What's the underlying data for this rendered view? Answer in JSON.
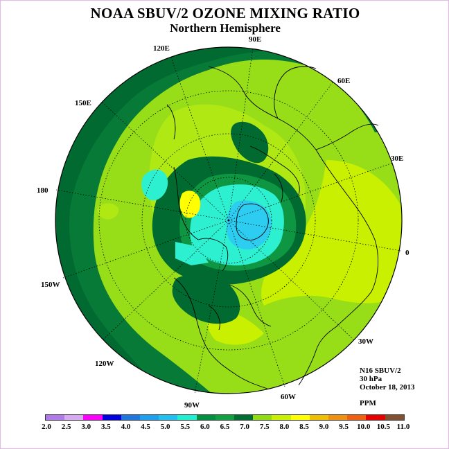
{
  "title": "NOAA SBUV/2 OZONE MIXING RATIO",
  "subtitle": "Northern Hemisphere",
  "longitude_labels": [
    "90E",
    "60E",
    "30E",
    "0",
    "30W",
    "60W",
    "90W",
    "120W",
    "150W",
    "180",
    "150E",
    "120E"
  ],
  "info": {
    "satellite": "N16 SBUV/2",
    "level": "30 hPa",
    "date": "October 18, 2013",
    "units": "PPM"
  },
  "colorbar": {
    "ticks": [
      "2.0",
      "2.5",
      "3.0",
      "3.5",
      "4.0",
      "4.5",
      "5.0",
      "5.5",
      "6.0",
      "6.5",
      "7.0",
      "7.5",
      "8.0",
      "8.5",
      "9.0",
      "9.5",
      "10.0",
      "10.5",
      "11.0"
    ],
    "colors": [
      "#b07ae8",
      "#d8a8f0",
      "#ff00ff",
      "#0000e0",
      "#1e78e0",
      "#1ea0f0",
      "#20c0f0",
      "#20f0d0",
      "#009040",
      "#10a040",
      "#006e30",
      "#90dc10",
      "#c8f000",
      "#ffff00",
      "#f0c000",
      "#f09010",
      "#f06010",
      "#e80000",
      "#805030"
    ]
  }
}
